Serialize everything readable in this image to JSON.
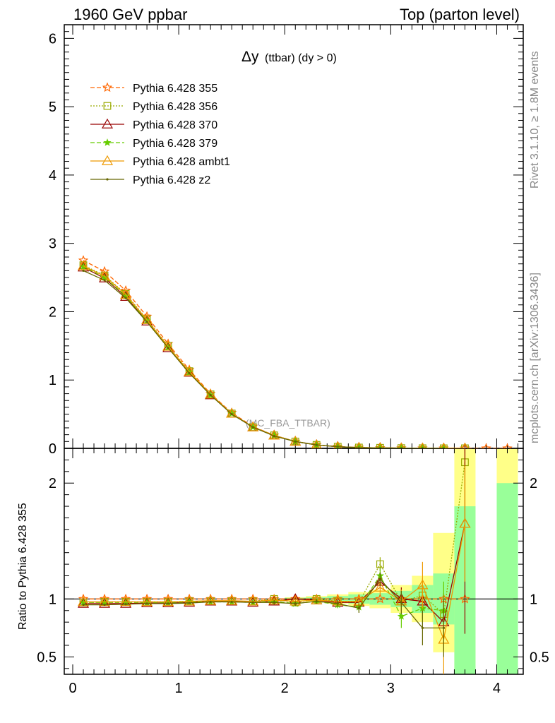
{
  "header": {
    "left": "1960 GeV ppbar",
    "right": "Top (parton level)"
  },
  "side_labels": {
    "rivet": "Rivet 3.1.10, ≥ 1.8M events",
    "mcplots": "mcplots.cern.ch [arXiv:1306.3436]"
  },
  "plot_title": {
    "main": "Δy",
    "sub": "(ttbar) (dy > 0)"
  },
  "watermark": "(MC_FBA_TTBAR)",
  "ratio_ylabel": "Ratio to Pythia 6.428 355",
  "chart_data": {
    "type": "line",
    "x": [
      0.1,
      0.3,
      0.5,
      0.7,
      0.9,
      1.1,
      1.3,
      1.5,
      1.7,
      1.9,
      2.1,
      2.3,
      2.5,
      2.7,
      2.9,
      3.1,
      3.3,
      3.5,
      3.7,
      3.9,
      4.1
    ],
    "xlim": [
      -0.08,
      4.25
    ],
    "main_ylim": [
      0,
      6.2
    ],
    "main_yticks": [
      "0",
      "1",
      "2",
      "3",
      "4",
      "5",
      "6"
    ],
    "ratio_ylim": [
      0.35,
      2.3
    ],
    "ratio_yticks": [
      "0.5",
      "1",
      "2"
    ],
    "xticks": [
      "0",
      "1",
      "2",
      "3",
      "4"
    ],
    "series": [
      {
        "name": "Pythia 6.428 355",
        "color": "#ff6600",
        "dash": "6,3",
        "marker": "star-open",
        "values": [
          2.75,
          2.59,
          2.31,
          1.93,
          1.53,
          1.15,
          0.8,
          0.52,
          0.32,
          0.19,
          0.1,
          0.05,
          0.025,
          0.012,
          0.006,
          0.003,
          0.0015,
          0.0008,
          0.0004,
          0.0002,
          0.0001
        ],
        "ratio": [
          1.0,
          1.0,
          1.0,
          1.0,
          1.0,
          1.0,
          1.0,
          1.0,
          1.0,
          1.0,
          1.0,
          1.0,
          1.0,
          1.0,
          1.0,
          1.0,
          1.0,
          1.0,
          1.0,
          null,
          null
        ]
      },
      {
        "name": "Pythia 6.428 356",
        "color": "#99aa00",
        "dash": "2,2",
        "marker": "square-open",
        "values": [
          2.68,
          2.53,
          2.26,
          1.89,
          1.5,
          1.13,
          0.79,
          0.51,
          0.31,
          0.19,
          0.1,
          0.05,
          0.024,
          0.012,
          0.0077,
          0.003,
          0.0016,
          0.0007,
          0.0009,
          null,
          null
        ],
        "ratio": [
          0.97,
          0.975,
          0.975,
          0.975,
          0.975,
          0.98,
          0.98,
          0.98,
          0.98,
          1.0,
          0.97,
          1.0,
          0.98,
          0.97,
          1.3,
          0.98,
          1.03,
          0.87,
          2.18,
          null,
          null
        ]
      },
      {
        "name": "Pythia 6.428 370",
        "color": "#990000",
        "dash": "",
        "marker": "triangle-open",
        "values": [
          2.65,
          2.49,
          2.22,
          1.86,
          1.47,
          1.11,
          0.78,
          0.51,
          0.31,
          0.19,
          0.1,
          0.05,
          0.024,
          0.011,
          0.007,
          0.003,
          0.0015,
          0.0006,
          0.0007,
          null,
          null
        ],
        "ratio": [
          0.96,
          0.96,
          0.96,
          0.965,
          0.965,
          0.97,
          0.98,
          0.98,
          0.97,
          0.98,
          1.0,
          0.99,
          0.97,
          0.97,
          1.15,
          1.0,
          0.98,
          0.8,
          1.65,
          null,
          null
        ]
      },
      {
        "name": "Pythia 6.428 379",
        "color": "#66cc00",
        "dash": "6,3",
        "marker": "star-filled",
        "values": [
          2.66,
          2.5,
          2.23,
          1.87,
          1.48,
          1.12,
          0.78,
          0.51,
          0.31,
          0.19,
          0.1,
          0.05,
          0.024,
          0.011,
          0.0068,
          0.0027,
          0.0014,
          0.0007,
          null,
          null,
          null
        ],
        "ratio": [
          0.97,
          0.97,
          0.97,
          0.97,
          0.97,
          0.975,
          0.975,
          0.975,
          0.97,
          0.98,
          0.96,
          0.98,
          0.95,
          0.93,
          1.2,
          0.85,
          0.92,
          0.9,
          null,
          null,
          null
        ]
      },
      {
        "name": "Pythia 6.428 ambt1",
        "color": "#ee9900",
        "dash": "",
        "marker": "triangle-open",
        "values": [
          2.67,
          2.52,
          2.25,
          1.88,
          1.49,
          1.12,
          0.79,
          0.51,
          0.31,
          0.19,
          0.1,
          0.05,
          0.024,
          0.012,
          0.0066,
          0.003,
          0.0017,
          0.0005,
          0.0007,
          null,
          null
        ],
        "ratio": [
          0.975,
          0.975,
          0.975,
          0.975,
          0.975,
          0.98,
          0.985,
          0.985,
          0.98,
          0.99,
          0.98,
          0.99,
          0.98,
          0.98,
          1.1,
          0.98,
          1.12,
          0.65,
          1.65,
          null,
          null
        ]
      },
      {
        "name": "Pythia 6.428 z2",
        "color": "#666600",
        "dash": "",
        "marker": "dot",
        "values": [
          2.6,
          2.46,
          2.2,
          1.85,
          1.47,
          1.1,
          0.78,
          0.5,
          0.31,
          0.18,
          0.1,
          0.05,
          0.024,
          0.011,
          0.0068,
          0.003,
          0.0011,
          0.0006,
          null,
          null,
          null
        ],
        "ratio": [
          0.95,
          0.95,
          0.955,
          0.96,
          0.96,
          0.965,
          0.975,
          0.975,
          0.97,
          0.97,
          0.96,
          0.98,
          0.96,
          0.92,
          1.17,
          0.97,
          0.75,
          0.75,
          null,
          null,
          null
        ]
      }
    ],
    "ratio_errors": {
      "356": [
        0,
        0,
        0,
        0,
        0,
        0,
        0,
        0,
        0,
        0.02,
        0.02,
        0.02,
        0.03,
        0.04,
        0.06,
        0.1,
        0.15,
        0.25,
        0.5
      ],
      "370": [
        0,
        0,
        0,
        0,
        0,
        0,
        0,
        0,
        0,
        0.02,
        0.02,
        0.02,
        0.03,
        0.04,
        0.06,
        0.1,
        0.15,
        0.25,
        0.95
      ],
      "379": [
        0,
        0,
        0,
        0,
        0,
        0,
        0,
        0,
        0,
        0.02,
        0.02,
        0.02,
        0.03,
        0.04,
        0.06,
        0.1,
        0.15,
        0.25
      ],
      "ambt1": [
        0,
        0,
        0,
        0,
        0,
        0,
        0,
        0,
        0,
        0.02,
        0.02,
        0.02,
        0.03,
        0.04,
        0.06,
        0.1,
        0.2,
        0.3,
        0.5
      ],
      "z2": [
        0,
        0,
        0,
        0,
        0,
        0,
        0,
        0,
        0,
        0.02,
        0.02,
        0.02,
        0.03,
        0.04,
        0.06,
        0.1,
        0.15,
        0.25
      ]
    },
    "uncertainty_bands": {
      "inner_color": "#99ff99",
      "outer_color": "#ffff88",
      "bins": [
        {
          "lo": 2.0,
          "hi": 2.2,
          "inner": [
            0.99,
            1.01
          ],
          "outer": [
            0.985,
            1.015
          ]
        },
        {
          "lo": 2.2,
          "hi": 2.4,
          "inner": [
            0.985,
            1.015
          ],
          "outer": [
            0.975,
            1.025
          ]
        },
        {
          "lo": 2.4,
          "hi": 2.6,
          "inner": [
            0.975,
            1.025
          ],
          "outer": [
            0.96,
            1.04
          ]
        },
        {
          "lo": 2.6,
          "hi": 2.8,
          "inner": [
            0.96,
            1.04
          ],
          "outer": [
            0.94,
            1.06
          ]
        },
        {
          "lo": 2.8,
          "hi": 3.0,
          "inner": [
            0.95,
            1.05
          ],
          "outer": [
            0.92,
            1.08
          ]
        },
        {
          "lo": 3.0,
          "hi": 3.2,
          "inner": [
            0.93,
            1.07
          ],
          "outer": [
            0.88,
            1.12
          ]
        },
        {
          "lo": 3.2,
          "hi": 3.4,
          "inner": [
            0.88,
            1.12
          ],
          "outer": [
            0.8,
            1.2
          ]
        },
        {
          "lo": 3.4,
          "hi": 3.6,
          "inner": [
            0.78,
            1.22
          ],
          "outer": [
            0.54,
            1.57
          ]
        },
        {
          "lo": 3.6,
          "hi": 3.8,
          "inner": [
            0.35,
            1.8
          ],
          "outer": [
            0.35,
            2.3
          ]
        },
        {
          "lo": 4.0,
          "hi": 4.2,
          "inner": [
            0.35,
            2.0
          ],
          "outer": [
            0.35,
            2.3
          ]
        }
      ]
    }
  }
}
